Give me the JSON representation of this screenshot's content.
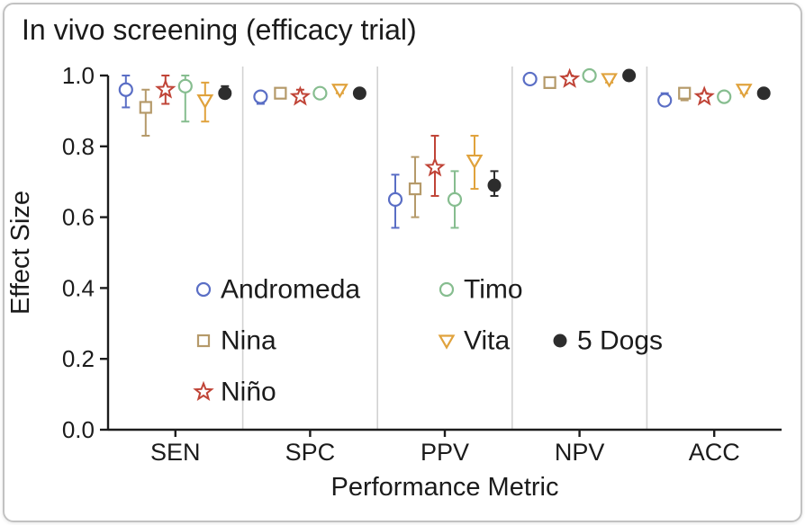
{
  "chart_data": {
    "type": "scatter",
    "title": "In vivo screening (efficacy trial)",
    "xlabel": "Performance Metric",
    "ylabel": "Effect Size",
    "categories": [
      "SEN",
      "SPC",
      "PPV",
      "NPV",
      "ACC"
    ],
    "ylim": [
      0.0,
      1.0
    ],
    "yticks": [
      "1.0",
      "0.8",
      "0.6",
      "0.4",
      "0.2",
      "0.0"
    ],
    "grid": false,
    "group_separators": true,
    "error_bars": true,
    "legend_position": "inside-lower-center",
    "series": [
      {
        "name": "Andromeda",
        "marker": "open-circle",
        "color": "#5a6ec5",
        "values": [
          0.96,
          0.94,
          0.65,
          0.99,
          0.93
        ],
        "err_low": [
          0.91,
          0.92,
          0.57,
          0.98,
          0.92
        ],
        "err_high": [
          1.0,
          0.95,
          0.72,
          1.0,
          0.95
        ]
      },
      {
        "name": "Nina",
        "marker": "open-square",
        "color": "#b59a6a",
        "values": [
          0.91,
          0.95,
          0.68,
          0.98,
          0.95
        ],
        "err_low": [
          0.83,
          0.94,
          0.6,
          0.97,
          0.93
        ],
        "err_high": [
          0.96,
          0.96,
          0.77,
          0.99,
          0.96
        ]
      },
      {
        "name": "Niño",
        "marker": "open-star",
        "color": "#c04437",
        "values": [
          0.96,
          0.94,
          0.74,
          0.99,
          0.94
        ],
        "err_low": [
          0.92,
          0.93,
          0.66,
          0.98,
          0.93
        ],
        "err_high": [
          1.0,
          0.96,
          0.83,
          1.0,
          0.95
        ]
      },
      {
        "name": "Timo",
        "marker": "open-circle",
        "color": "#86bd8f",
        "values": [
          0.97,
          0.95,
          0.65,
          1.0,
          0.94
        ],
        "err_low": [
          0.87,
          0.94,
          0.57,
          0.99,
          0.93
        ],
        "err_high": [
          1.0,
          0.96,
          0.73,
          1.0,
          0.95
        ]
      },
      {
        "name": "Vita",
        "marker": "open-triangle-down",
        "color": "#e0a23c",
        "values": [
          0.93,
          0.96,
          0.76,
          0.99,
          0.96
        ],
        "err_low": [
          0.87,
          0.95,
          0.68,
          0.98,
          0.95
        ],
        "err_high": [
          0.98,
          0.97,
          0.83,
          1.0,
          0.97
        ]
      },
      {
        "name": "5 Dogs",
        "marker": "filled-circle",
        "color": "#2d2d2d",
        "values": [
          0.95,
          0.95,
          0.69,
          1.0,
          0.95
        ],
        "err_low": [
          0.94,
          0.94,
          0.66,
          0.99,
          0.94
        ],
        "err_high": [
          0.97,
          0.96,
          0.73,
          1.0,
          0.96
        ]
      }
    ]
  },
  "colors": {
    "axis": "#1c1c1c",
    "separator": "#d2d2d2",
    "frame_border": "#c2c2c2",
    "background": "#ffffff"
  }
}
